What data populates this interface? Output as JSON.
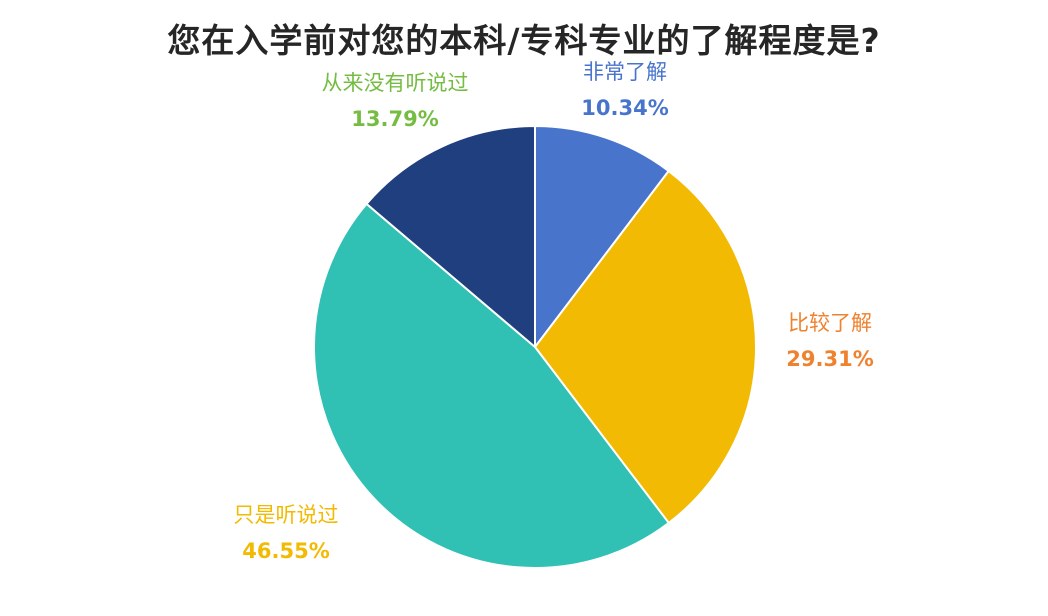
{
  "chart_data": {
    "type": "pie",
    "title": "您在入学前对您的本科/专科专业的了解程度是?",
    "start_angle_deg": 0,
    "direction": "clockwise",
    "slices": [
      {
        "label": "非常了解",
        "value": 10.34,
        "value_label": "10.34%",
        "color": "#4874cb",
        "label_color": "#4874cb"
      },
      {
        "label": "比较了解",
        "value": 29.31,
        "value_label": "29.31%",
        "color": "#f2ba02",
        "label_color": "#ee822f"
      },
      {
        "label": "只是听说过",
        "value": 46.55,
        "value_label": "46.55%",
        "color": "#30c0b4",
        "label_color": "#f2ba02"
      },
      {
        "label": "从来没有听说过",
        "value": 13.79,
        "value_label": "13.79%",
        "color": "#203f7f",
        "label_color": "#75bd42"
      }
    ]
  }
}
